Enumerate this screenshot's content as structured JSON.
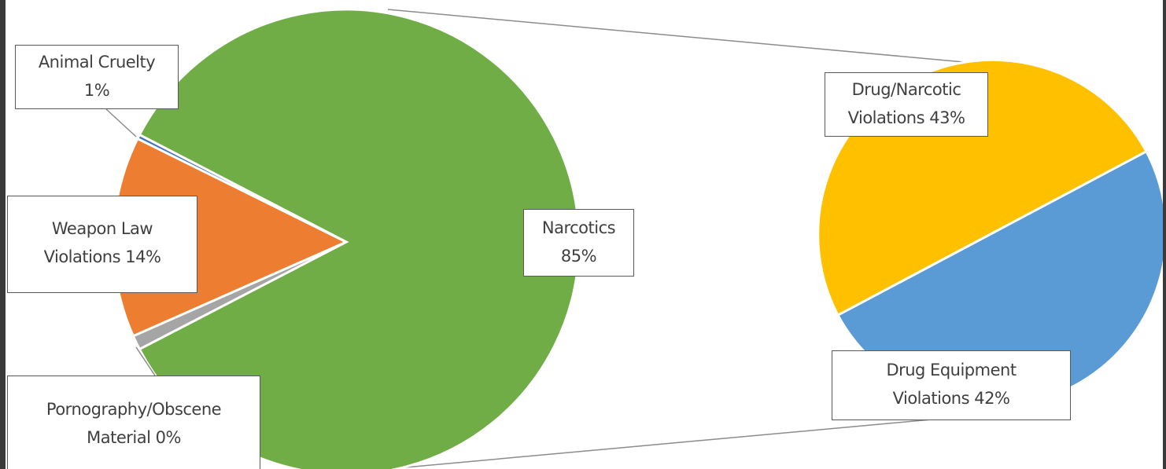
{
  "chart_data": {
    "type": "pie",
    "subtype": "pie-of-pie",
    "main_pie": {
      "slices": [
        {
          "label": "Narcotics",
          "pct_text": "85%",
          "value": 85,
          "color": "#70ad47"
        },
        {
          "label_line1": "Animal Cruelty",
          "label_line2": "1%",
          "value": 1,
          "color": "#a5a5a5"
        },
        {
          "label_line1": "Weapon Law",
          "label_line2": "Violations 14%",
          "value": 14,
          "color": "#ed7d31"
        },
        {
          "label_line1": "Pornography/Obscene",
          "label_line2": "Material 0%",
          "value": 0.3,
          "color": "#4472c4"
        }
      ]
    },
    "secondary_pie": {
      "breaks_down": "Narcotics",
      "slices": [
        {
          "label_line1": "Drug/Narcotic",
          "label_line2": "Violations 43%",
          "value": 43,
          "color": "#ffc000"
        },
        {
          "label_line1": "Drug Equipment",
          "label_line2": "Violations 42%",
          "value": 42,
          "color": "#5b9bd5"
        }
      ]
    },
    "title": "",
    "legend": "none"
  }
}
